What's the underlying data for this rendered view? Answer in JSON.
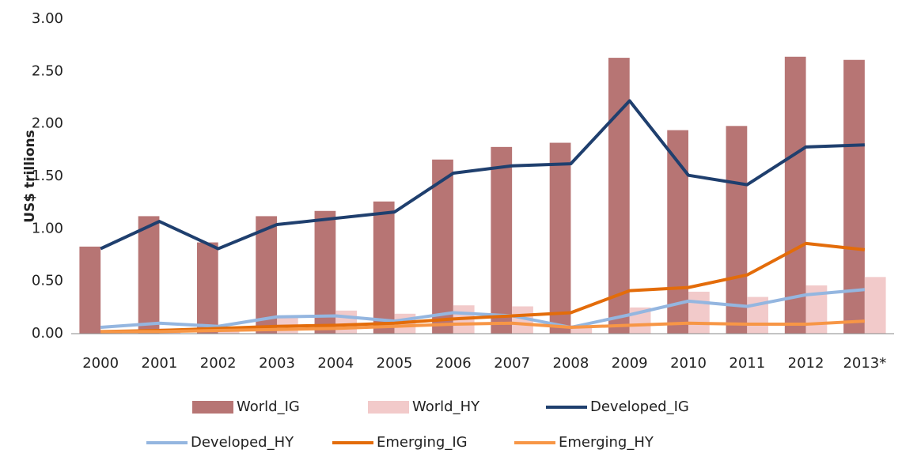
{
  "chart_data": {
    "type": "combo",
    "ylabel": "US$ trillions",
    "categories": [
      "2000",
      "2001",
      "2002",
      "2003",
      "2004",
      "2005",
      "2006",
      "2007",
      "2008",
      "2009",
      "2010",
      "2011",
      "2012",
      "2013*"
    ],
    "series": [
      {
        "name": "World_IG",
        "type": "bar",
        "color": "#b77574",
        "values": [
          0.83,
          1.12,
          0.87,
          1.12,
          1.17,
          1.26,
          1.66,
          1.78,
          1.82,
          2.63,
          1.94,
          1.98,
          2.64,
          2.61
        ]
      },
      {
        "name": "World_HY",
        "type": "bar",
        "color": "#f2caca",
        "values": [
          0.03,
          0.05,
          0.04,
          0.15,
          0.22,
          0.19,
          0.27,
          0.26,
          0.08,
          0.25,
          0.4,
          0.35,
          0.46,
          0.54
        ]
      },
      {
        "name": "Developed_IG",
        "type": "line",
        "color": "#1f3f6e",
        "values": [
          0.81,
          1.07,
          0.81,
          1.04,
          1.1,
          1.16,
          1.53,
          1.6,
          1.62,
          2.22,
          1.51,
          1.42,
          1.78,
          1.8
        ]
      },
      {
        "name": "Developed_HY",
        "type": "line",
        "color": "#94b6e0",
        "values": [
          0.06,
          0.1,
          0.07,
          0.16,
          0.17,
          0.12,
          0.2,
          0.17,
          0.06,
          0.18,
          0.31,
          0.26,
          0.37,
          0.42
        ]
      },
      {
        "name": "Emerging_IG",
        "type": "line",
        "color": "#e36c0a",
        "values": [
          0.02,
          0.03,
          0.05,
          0.07,
          0.08,
          0.1,
          0.14,
          0.17,
          0.2,
          0.41,
          0.44,
          0.56,
          0.86,
          0.8
        ]
      },
      {
        "name": "Emerging_HY",
        "type": "line",
        "color": "#f79646",
        "values": [
          0.02,
          0.02,
          0.03,
          0.04,
          0.05,
          0.07,
          0.09,
          0.1,
          0.06,
          0.08,
          0.1,
          0.09,
          0.09,
          0.12
        ]
      }
    ],
    "ylim": [
      0,
      3
    ],
    "yticks": [
      {
        "value": 0,
        "label": "0.00"
      },
      {
        "value": 0.5,
        "label": "0.50"
      },
      {
        "value": 1,
        "label": "1.00"
      },
      {
        "value": 1.5,
        "label": "1.50"
      },
      {
        "value": 2,
        "label": "2.00"
      },
      {
        "value": 2.5,
        "label": "2.50"
      },
      {
        "value": 3,
        "label": "3.00"
      }
    ],
    "grid": false
  }
}
